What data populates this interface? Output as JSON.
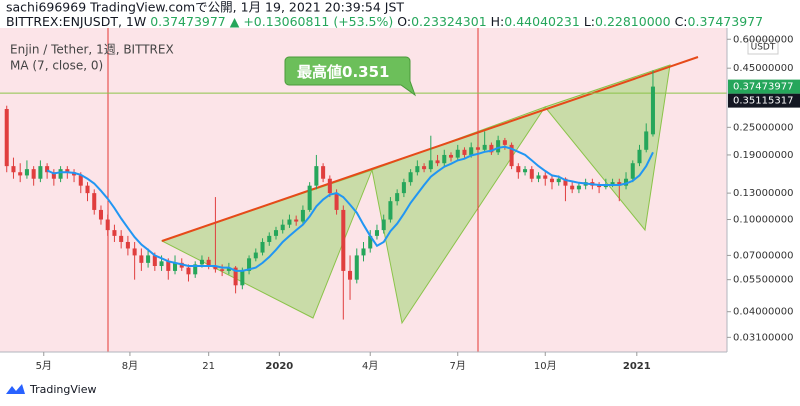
{
  "header": {
    "line1": "sachi696969 TradingView.comで公開, 1月 19, 2021 20:39:54 JST",
    "symbol": "BITTREX:ENJUSDT, 1W",
    "last": "0.37473977",
    "change": "▲ +0.13060811 (+53.5%)",
    "o_label": "O:",
    "o_value": "0.23324301",
    "h_label": "H:",
    "h_value": "0.44040231",
    "l_label": "L:",
    "l_value": "0.22810000",
    "c_label": "C:",
    "c_value": "0.37473977"
  },
  "footer": {
    "logo": "TradingView"
  },
  "chart_data": {
    "type": "candlestick",
    "legend": [
      "Enjin / Tether, 1週, BITTREX",
      "MA (7, close, 0)"
    ],
    "currency": "USDT",
    "log_scale": true,
    "up_color": "#26a65b",
    "down_color": "#e03e3e",
    "ma_color": "#2196f3",
    "xlim": [
      -1,
      107
    ],
    "xticks": [
      {
        "value": 5.5,
        "label": "5月"
      },
      {
        "value": 18.3,
        "label": "8月"
      },
      {
        "value": 30,
        "label": "21"
      },
      {
        "value": 40.5,
        "label": "2020"
      },
      {
        "value": 54,
        "label": "4月"
      },
      {
        "value": 67,
        "label": "7月"
      },
      {
        "value": 80,
        "label": "10月"
      },
      {
        "value": 93.6,
        "label": "2021"
      }
    ],
    "ylim": [
      0.0268,
      0.671
    ],
    "yticks": [
      {
        "value": 0.031,
        "label": "0.03100000"
      },
      {
        "value": 0.04,
        "label": "0.04000000"
      },
      {
        "value": 0.055,
        "label": "0.05500000"
      },
      {
        "value": 0.07,
        "label": "0.07000000"
      },
      {
        "value": 0.1,
        "label": "0.10000000"
      },
      {
        "value": 0.13,
        "label": "0.13000000"
      },
      {
        "value": 0.19,
        "label": "0.19000000"
      },
      {
        "value": 0.25,
        "label": "0.25000000"
      },
      {
        "value": 0.45,
        "label": "0.45000000"
      },
      {
        "value": 0.6,
        "label": "0.60000000"
      }
    ],
    "last_price": 0.37473977,
    "high_line": 0.35115317,
    "annotation": {
      "label": "最高値",
      "value": "0.351"
    },
    "ohlc": [
      [
        0.3,
        0.31,
        0.16,
        0.17
      ],
      [
        0.17,
        0.185,
        0.15,
        0.16
      ],
      [
        0.16,
        0.175,
        0.145,
        0.155
      ],
      [
        0.155,
        0.18,
        0.15,
        0.165
      ],
      [
        0.165,
        0.17,
        0.14,
        0.15
      ],
      [
        0.15,
        0.18,
        0.145,
        0.17
      ],
      [
        0.17,
        0.175,
        0.15,
        0.16
      ],
      [
        0.16,
        0.165,
        0.14,
        0.15
      ],
      [
        0.15,
        0.17,
        0.145,
        0.165
      ],
      [
        0.165,
        0.17,
        0.15,
        0.16
      ],
      [
        0.16,
        0.165,
        0.145,
        0.155
      ],
      [
        0.155,
        0.16,
        0.13,
        0.14
      ],
      [
        0.14,
        0.145,
        0.12,
        0.13
      ],
      [
        0.13,
        0.135,
        0.105,
        0.11
      ],
      [
        0.11,
        0.115,
        0.095,
        0.1
      ],
      [
        0.1,
        0.105,
        0.085,
        0.09
      ],
      [
        0.09,
        0.095,
        0.08,
        0.085
      ],
      [
        0.085,
        0.09,
        0.075,
        0.08
      ],
      [
        0.08,
        0.085,
        0.07,
        0.075
      ],
      [
        0.075,
        0.08,
        0.055,
        0.07
      ],
      [
        0.07,
        0.075,
        0.06,
        0.065
      ],
      [
        0.065,
        0.075,
        0.062,
        0.07
      ],
      [
        0.07,
        0.072,
        0.06,
        0.063
      ],
      [
        0.063,
        0.07,
        0.06,
        0.066
      ],
      [
        0.066,
        0.068,
        0.055,
        0.06
      ],
      [
        0.06,
        0.07,
        0.058,
        0.065
      ],
      [
        0.065,
        0.068,
        0.06,
        0.062
      ],
      [
        0.062,
        0.064,
        0.054,
        0.058
      ],
      [
        0.058,
        0.066,
        0.056,
        0.064
      ],
      [
        0.064,
        0.07,
        0.062,
        0.067
      ],
      [
        0.067,
        0.069,
        0.061,
        0.063
      ],
      [
        0.063,
        0.125,
        0.059,
        0.061
      ],
      [
        0.061,
        0.064,
        0.057,
        0.06
      ],
      [
        0.06,
        0.065,
        0.058,
        0.062
      ],
      [
        0.062,
        0.063,
        0.048,
        0.052
      ],
      [
        0.052,
        0.062,
        0.05,
        0.06
      ],
      [
        0.06,
        0.07,
        0.058,
        0.068
      ],
      [
        0.068,
        0.075,
        0.066,
        0.072
      ],
      [
        0.072,
        0.083,
        0.07,
        0.08
      ],
      [
        0.08,
        0.088,
        0.077,
        0.085
      ],
      [
        0.085,
        0.093,
        0.082,
        0.09
      ],
      [
        0.09,
        0.1,
        0.087,
        0.095
      ],
      [
        0.095,
        0.105,
        0.092,
        0.1
      ],
      [
        0.1,
        0.104,
        0.094,
        0.098
      ],
      [
        0.098,
        0.115,
        0.096,
        0.11
      ],
      [
        0.11,
        0.145,
        0.108,
        0.14
      ],
      [
        0.14,
        0.19,
        0.135,
        0.17
      ],
      [
        0.17,
        0.175,
        0.145,
        0.15
      ],
      [
        0.15,
        0.155,
        0.125,
        0.13
      ],
      [
        0.13,
        0.135,
        0.105,
        0.11
      ],
      [
        0.11,
        0.115,
        0.037,
        0.06
      ],
      [
        0.06,
        0.07,
        0.045,
        0.055
      ],
      [
        0.055,
        0.075,
        0.053,
        0.07
      ],
      [
        0.07,
        0.08,
        0.066,
        0.075
      ],
      [
        0.075,
        0.09,
        0.072,
        0.085
      ],
      [
        0.085,
        0.095,
        0.082,
        0.09
      ],
      [
        0.09,
        0.105,
        0.087,
        0.1
      ],
      [
        0.1,
        0.125,
        0.097,
        0.12
      ],
      [
        0.12,
        0.135,
        0.115,
        0.13
      ],
      [
        0.13,
        0.15,
        0.125,
        0.145
      ],
      [
        0.145,
        0.165,
        0.14,
        0.16
      ],
      [
        0.16,
        0.18,
        0.155,
        0.17
      ],
      [
        0.17,
        0.175,
        0.16,
        0.165
      ],
      [
        0.165,
        0.23,
        0.16,
        0.18
      ],
      [
        0.18,
        0.19,
        0.17,
        0.175
      ],
      [
        0.175,
        0.2,
        0.17,
        0.19
      ],
      [
        0.19,
        0.195,
        0.178,
        0.185
      ],
      [
        0.185,
        0.21,
        0.18,
        0.2
      ],
      [
        0.2,
        0.205,
        0.185,
        0.19
      ],
      [
        0.19,
        0.215,
        0.185,
        0.205
      ],
      [
        0.205,
        0.21,
        0.19,
        0.2
      ],
      [
        0.2,
        0.24,
        0.195,
        0.21
      ],
      [
        0.21,
        0.215,
        0.19,
        0.195
      ],
      [
        0.195,
        0.23,
        0.19,
        0.22
      ],
      [
        0.22,
        0.225,
        0.2,
        0.21
      ],
      [
        0.21,
        0.215,
        0.165,
        0.17
      ],
      [
        0.17,
        0.175,
        0.15,
        0.16
      ],
      [
        0.16,
        0.17,
        0.155,
        0.165
      ],
      [
        0.165,
        0.17,
        0.145,
        0.15
      ],
      [
        0.15,
        0.16,
        0.145,
        0.155
      ],
      [
        0.155,
        0.16,
        0.14,
        0.15
      ],
      [
        0.15,
        0.155,
        0.135,
        0.145
      ],
      [
        0.145,
        0.155,
        0.14,
        0.15
      ],
      [
        0.15,
        0.152,
        0.12,
        0.14
      ],
      [
        0.14,
        0.145,
        0.13,
        0.135
      ],
      [
        0.135,
        0.145,
        0.13,
        0.14
      ],
      [
        0.14,
        0.15,
        0.135,
        0.145
      ],
      [
        0.145,
        0.15,
        0.135,
        0.14
      ],
      [
        0.14,
        0.145,
        0.13,
        0.138
      ],
      [
        0.138,
        0.15,
        0.135,
        0.142
      ],
      [
        0.142,
        0.15,
        0.138,
        0.145
      ],
      [
        0.145,
        0.15,
        0.12,
        0.14
      ],
      [
        0.14,
        0.16,
        0.135,
        0.15
      ],
      [
        0.15,
        0.18,
        0.145,
        0.175
      ],
      [
        0.175,
        0.21,
        0.17,
        0.2
      ],
      [
        0.2,
        0.26,
        0.195,
        0.24
      ],
      [
        0.23324301,
        0.44040231,
        0.2281,
        0.37473977
      ]
    ],
    "ma": [
      null,
      null,
      null,
      null,
      null,
      null,
      0.163,
      0.158,
      0.16,
      0.16,
      0.159,
      0.156,
      0.15,
      0.143,
      0.133,
      0.123,
      0.112,
      0.101,
      0.092,
      0.084,
      0.078,
      0.074,
      0.07,
      0.068,
      0.066,
      0.065,
      0.064,
      0.063,
      0.063,
      0.063,
      0.063,
      0.063,
      0.062,
      0.062,
      0.06,
      0.06,
      0.061,
      0.062,
      0.065,
      0.069,
      0.074,
      0.08,
      0.085,
      0.09,
      0.095,
      0.103,
      0.114,
      0.122,
      0.128,
      0.13,
      0.125,
      0.116,
      0.107,
      0.095,
      0.085,
      0.077,
      0.08,
      0.089,
      0.096,
      0.106,
      0.118,
      0.129,
      0.141,
      0.153,
      0.161,
      0.169,
      0.174,
      0.18,
      0.183,
      0.189,
      0.192,
      0.196,
      0.198,
      0.204,
      0.206,
      0.202,
      0.196,
      0.19,
      0.18,
      0.17,
      0.162,
      0.155,
      0.153,
      0.148,
      0.146,
      0.144,
      0.143,
      0.142,
      0.141,
      0.141,
      0.141,
      0.141,
      0.143,
      0.147,
      0.155,
      0.17,
      0.195
    ]
  }
}
